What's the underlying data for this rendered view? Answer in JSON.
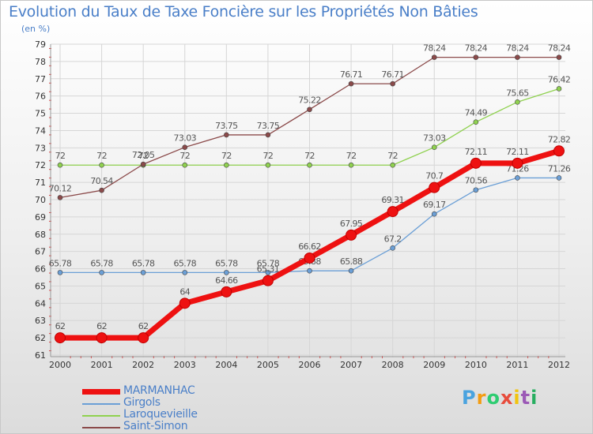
{
  "chart_data": {
    "type": "line",
    "title": "Evolution du Taux de Taxe Foncière sur les Propriétés Non Bâties",
    "subtitle": "(en %)",
    "categories": [
      "2000",
      "2001",
      "2002",
      "2003",
      "2004",
      "2005",
      "2006",
      "2007",
      "2008",
      "2009",
      "2010",
      "2011",
      "2012"
    ],
    "ylim": [
      61,
      79
    ],
    "yticks": [
      "61",
      "62",
      "63",
      "64",
      "65",
      "66",
      "67",
      "68",
      "69",
      "70",
      "71",
      "72",
      "73",
      "74",
      "75",
      "76",
      "77",
      "78",
      "79"
    ],
    "grid": true,
    "series": [
      {
        "name": "Laroquevieille",
        "color": "#8fd14f",
        "width": 1.3,
        "values": [
          72,
          72,
          72,
          72,
          72,
          72,
          72,
          72,
          72,
          73.03,
          74.49,
          75.65,
          76.42
        ],
        "labels": [
          "72",
          "72",
          "72",
          "72",
          "72",
          "72",
          "72",
          "72",
          "72",
          "73.03",
          "74.49",
          "75.65",
          "76.42"
        ]
      },
      {
        "name": "Girgols",
        "color": "#6b9fd6",
        "width": 1.3,
        "values": [
          65.78,
          65.78,
          65.78,
          65.78,
          65.78,
          65.78,
          65.88,
          65.88,
          67.2,
          69.17,
          70.56,
          71.26,
          71.26
        ],
        "labels": [
          "65.78",
          "65.78",
          "65.78",
          "65.78",
          "65.78",
          "65.78",
          "65.88",
          "65.88",
          "67.2",
          "69.17",
          "70.56",
          "71.26",
          "71.26"
        ]
      },
      {
        "name": "Saint-Simon",
        "color": "#8b4a4a",
        "width": 1.3,
        "values": [
          70.12,
          70.54,
          72.05,
          73.03,
          73.75,
          73.75,
          75.22,
          76.71,
          76.71,
          78.24,
          78.24,
          78.24,
          78.24
        ],
        "labels": [
          "70.12",
          "70.54",
          "72.05",
          "73.03",
          "73.75",
          "73.75",
          "75.22",
          "76.71",
          "76.71",
          "78.24",
          "78.24",
          "78.24",
          "78.24"
        ]
      },
      {
        "name": "MARMANHAC",
        "color": "#ee1111",
        "width": 7,
        "values": [
          62,
          62,
          62,
          64,
          64.66,
          65.31,
          66.62,
          67.95,
          69.31,
          70.7,
          72.11,
          72.11,
          72.82
        ],
        "labels": [
          "62",
          "62",
          "62",
          "64",
          "64.66",
          "65.31",
          "66.62",
          "67.95",
          "69.31",
          "70.7",
          "72.11",
          "72.11",
          "72.82"
        ]
      }
    ],
    "legend": [
      {
        "name": "MARMANHAC",
        "color": "#ee1111"
      },
      {
        "name": "Girgols",
        "color": "#6b9fd6"
      },
      {
        "name": "Laroquevieille",
        "color": "#8fd14f"
      },
      {
        "name": "Saint-Simon",
        "color": "#8b4a4a"
      }
    ]
  },
  "logo": {
    "text": "Prox iti",
    "letters": [
      "P",
      "r",
      "o",
      "x",
      "i",
      "t",
      "i"
    ],
    "colors": [
      "#4aa3df",
      "#f39c12",
      "#2ecc71",
      "#e74c3c",
      "#f1c40f",
      "#9b59b6",
      "#27ae60"
    ]
  }
}
